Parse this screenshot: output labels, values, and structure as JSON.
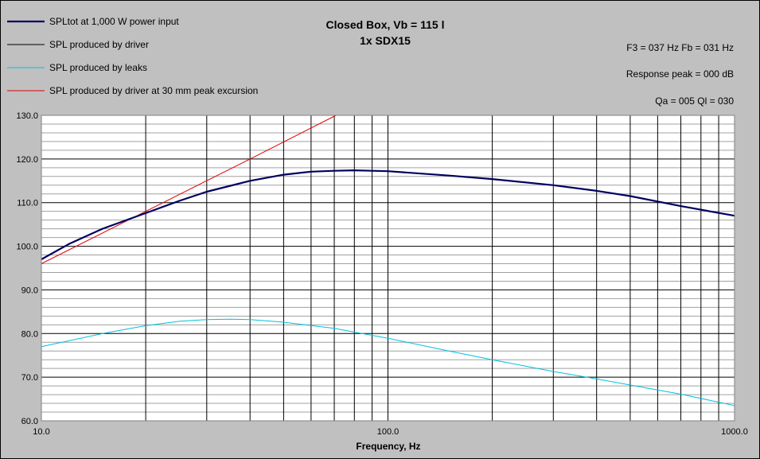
{
  "chart_data": {
    "type": "line",
    "title": "Closed Box, Vb = 115 l",
    "subtitle": "1x SDX15",
    "xlabel": "Frequency, Hz",
    "ylabel": "",
    "x_scale": "log",
    "xlim": [
      10,
      1000
    ],
    "ylim": [
      60,
      130
    ],
    "grid": true,
    "legend_position": "top-left",
    "x_ticks": [
      {
        "value": 10,
        "label": "10.0"
      },
      {
        "value": 100,
        "label": "100.0"
      },
      {
        "value": 1000,
        "label": "1000.0"
      }
    ],
    "y_ticks": [
      {
        "value": 130,
        "label": "130.0"
      },
      {
        "value": 120,
        "label": "120.0"
      },
      {
        "value": 110,
        "label": "110.0"
      },
      {
        "value": 100,
        "label": "100.0"
      },
      {
        "value": 90,
        "label": "90.0"
      },
      {
        "value": 80,
        "label": "80.0"
      },
      {
        "value": 70,
        "label": "70.0"
      },
      {
        "value": 60,
        "label": "60.0"
      }
    ],
    "annotations": [
      "F3 = 037 Hz  Fb = 031 Hz",
      "Response peak = 000 dB",
      "Qa = 005  Ql = 030"
    ],
    "series": [
      {
        "name": "SPLtot at 1,000 W power input",
        "color": "#000060",
        "width": 2.2,
        "x": [
          10,
          12,
          15,
          20,
          25,
          30,
          40,
          50,
          60,
          70,
          80,
          90,
          100,
          150,
          200,
          300,
          400,
          500,
          700,
          1000
        ],
        "y": [
          97,
          100.5,
          104,
          107.6,
          110.4,
          112.5,
          115,
          116.4,
          117.1,
          117.3,
          117.4,
          117.3,
          117.2,
          116.2,
          115.4,
          114,
          112.7,
          111.5,
          109.2,
          107
        ]
      },
      {
        "name": "SPL produced by driver",
        "color": "#000000",
        "width": 1,
        "x": [
          10,
          12,
          15,
          20,
          25,
          30,
          40,
          50,
          60,
          70,
          80,
          90,
          100,
          150,
          200,
          300,
          400,
          500,
          700,
          1000
        ],
        "y": [
          97,
          100.5,
          104,
          107.6,
          110.4,
          112.5,
          115,
          116.4,
          117.1,
          117.3,
          117.4,
          117.3,
          117.2,
          116.2,
          115.4,
          114,
          112.7,
          111.5,
          109.2,
          107
        ]
      },
      {
        "name": "SPL produced by leaks",
        "color": "#00c0e0",
        "width": 1,
        "x": [
          10,
          15,
          20,
          25,
          30,
          35,
          40,
          50,
          70,
          100,
          150,
          200,
          300,
          400,
          500,
          700,
          1000
        ],
        "y": [
          77,
          80,
          81.8,
          82.8,
          83.2,
          83.3,
          83.2,
          82.6,
          81.2,
          78.9,
          76,
          74,
          71.3,
          69.6,
          68.2,
          66.1,
          63.5
        ]
      },
      {
        "name": "SPL produced by driver at 30 mm peak excursion",
        "color": "#e00000",
        "width": 1,
        "x": [
          10,
          20,
          40,
          70.8
        ],
        "y": [
          96,
          108,
          120,
          130
        ]
      }
    ]
  }
}
